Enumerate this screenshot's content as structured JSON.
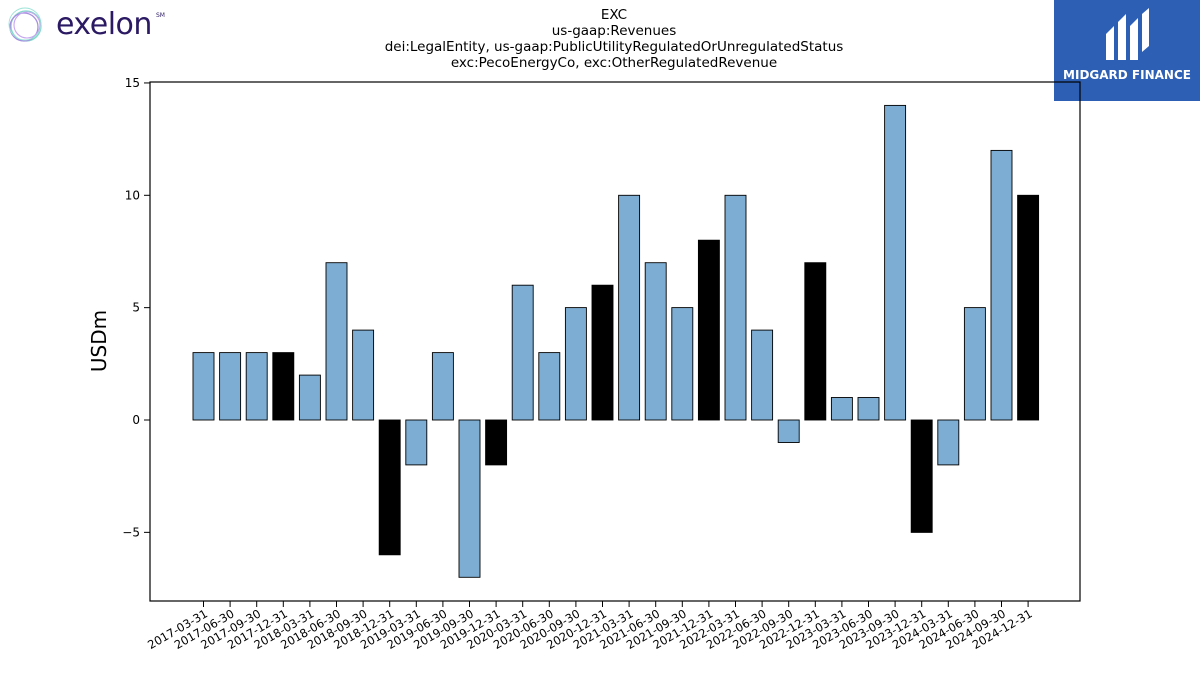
{
  "logos": {
    "left_brand": "exelon",
    "left_mark": "SM",
    "right_brand": "MIDGARD FINANCE"
  },
  "colors": {
    "bar_default": "#7eadd3",
    "bar_highlight": "#000000",
    "right_logo_bg": "#2d5fb4"
  },
  "chart_data": {
    "type": "bar",
    "title_lines": [
      "EXC",
      "us-gaap:Revenues",
      "dei:LegalEntity, us-gaap:PublicUtilityRegulatedOrUnregulatedStatus",
      "exc:PecoEnergyCo, exc:OtherRegulatedRevenue"
    ],
    "xlabel": "",
    "ylabel": "USDm",
    "ylim": [
      -8,
      15
    ],
    "yticks": [
      -5,
      0,
      5,
      10,
      15
    ],
    "ytick_labels": [
      "−5",
      "0",
      "5",
      "10",
      "15"
    ],
    "grid": false,
    "categories": [
      "2017-03-31",
      "2017-06-30",
      "2017-09-30",
      "2017-12-31",
      "2018-03-31",
      "2018-06-30",
      "2018-09-30",
      "2018-12-31",
      "2019-03-31",
      "2019-06-30",
      "2019-09-30",
      "2019-12-31",
      "2020-03-31",
      "2020-06-30",
      "2020-09-30",
      "2020-12-31",
      "2021-03-31",
      "2021-06-30",
      "2021-09-30",
      "2021-12-31",
      "2022-03-31",
      "2022-06-30",
      "2022-09-30",
      "2022-12-31",
      "2023-03-31",
      "2023-06-30",
      "2023-09-30",
      "2023-12-31",
      "2024-03-31",
      "2024-06-30",
      "2024-09-30",
      "2024-12-31"
    ],
    "values": [
      3,
      3,
      3,
      3,
      2,
      7,
      4,
      -6,
      -2,
      3,
      -7,
      -2,
      6,
      3,
      5,
      6,
      10,
      7,
      5,
      8,
      10,
      4,
      -1,
      7,
      1,
      1,
      14,
      -5,
      -2,
      5,
      12,
      10
    ],
    "highlight": [
      false,
      false,
      false,
      true,
      false,
      false,
      false,
      true,
      false,
      false,
      false,
      true,
      false,
      false,
      false,
      true,
      false,
      false,
      false,
      true,
      false,
      false,
      false,
      true,
      false,
      false,
      false,
      true,
      false,
      false,
      false,
      true
    ]
  }
}
